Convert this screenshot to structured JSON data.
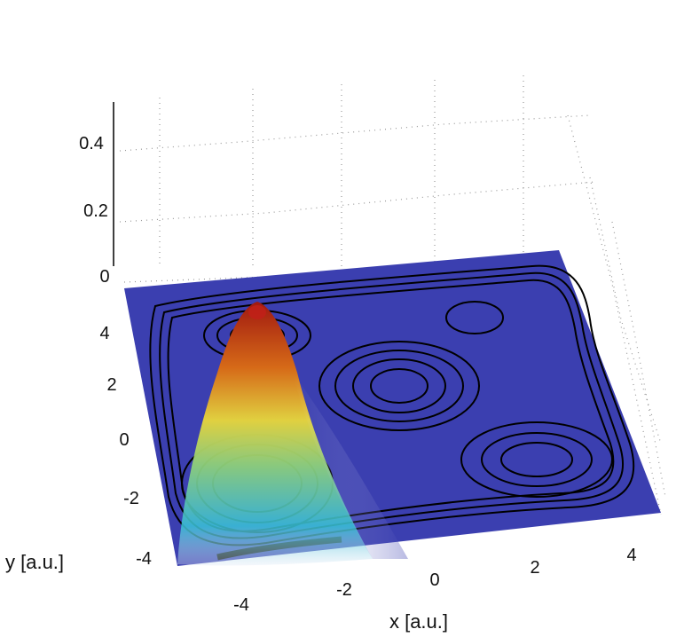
{
  "chart_data": {
    "type": "surface",
    "title": "",
    "xlabel": "x [a.u.]",
    "ylabel": "y [a.u.]",
    "zlabel": "",
    "x_ticks": [
      "-4",
      "-2",
      "0",
      "2",
      "4"
    ],
    "y_ticks": [
      "-4",
      "-2",
      "0",
      "2",
      "4"
    ],
    "z_ticks": [
      "0",
      "0.2",
      "0.4"
    ],
    "xlim": [
      -5,
      5
    ],
    "ylim": [
      -5,
      5
    ],
    "zlim": [
      0,
      0.5
    ],
    "grid": true,
    "colormap": "jet",
    "floor_color": "#3b3fb0",
    "surface_peak": {
      "x": -3.6,
      "y": 3.6,
      "z": 0.45
    },
    "contour_wells": [
      {
        "x": -3.5,
        "y": -2.5
      },
      {
        "x": -3.2,
        "y": 3.4
      },
      {
        "x": 0.0,
        "y": 1.0
      },
      {
        "x": 3.5,
        "y": -2.0
      },
      {
        "x": 2.0,
        "y": 3.8
      }
    ]
  }
}
